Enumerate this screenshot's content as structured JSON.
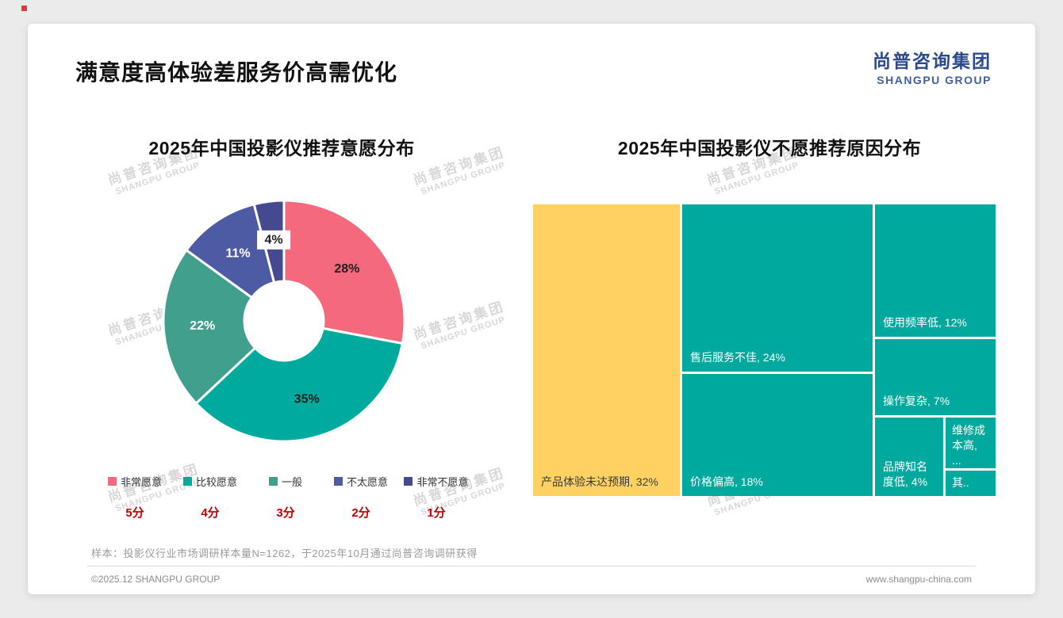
{
  "page": {
    "title": "满意度高体验差服务价高需优化",
    "logo": {
      "cn": "尚普咨询集团",
      "en": "SHANGPU GROUP"
    },
    "watermark": {
      "cn": "尚普咨询集团",
      "en": "SHANGPU GROUP"
    },
    "footer": {
      "note": "样本：投影仪行业市场调研样本量N=1262，于2025年10月通过尚普咨询调研获得",
      "copyright": "©2025.12 SHANGPU GROUP",
      "website": "www.shangpu-china.com"
    }
  },
  "chart_data": [
    {
      "type": "pie",
      "donut": true,
      "title": "2025年中国投影仪推荐意愿分布",
      "categories": [
        "非常愿意",
        "比较愿意",
        "一般",
        "不太愿意",
        "非常不愿意"
      ],
      "values": [
        28,
        35,
        22,
        11,
        4
      ],
      "unit": "%",
      "colors": [
        "#f4697c",
        "#00ab9e",
        "#41a08d",
        "#4d5ba5",
        "#45498f"
      ],
      "label_colors": [
        "#1f1f1f",
        "#1f1f1f",
        "#ffffff",
        "#ffffff",
        "#1f1f1f"
      ],
      "scores": [
        "5分",
        "4分",
        "3分",
        "2分",
        "1分"
      ],
      "legend_position": "bottom"
    },
    {
      "type": "treemap",
      "title": "2025年中国投影仪不愿推荐原因分布",
      "items": [
        {
          "label": "产品体验未达预期",
          "value": 32,
          "display": "产品体验未达预期, 32%",
          "color": "#fdd263",
          "text_color": "#3a3a3a"
        },
        {
          "label": "售后服务不佳",
          "value": 24,
          "display": "售后服务不佳, 24%",
          "color": "#00a99d",
          "text_color": "#ffffff"
        },
        {
          "label": "价格偏高",
          "value": 18,
          "display": "价格偏高, 18%",
          "color": "#00a99d",
          "text_color": "#ffffff"
        },
        {
          "label": "使用频率低",
          "value": 12,
          "display": "使用频率低, 12%",
          "color": "#00a99d",
          "text_color": "#ffffff"
        },
        {
          "label": "操作复杂",
          "value": 7,
          "display": "操作复杂, 7%",
          "color": "#00a99d",
          "text_color": "#ffffff"
        },
        {
          "label": "品牌知名度低",
          "value": 4,
          "display": "品牌知名度低, 4%",
          "color": "#00a99d",
          "text_color": "#ffffff"
        },
        {
          "label": "维修成本高",
          "display": "维修成本高, ...",
          "color": "#00a99d",
          "text_color": "#ffffff"
        },
        {
          "label": "其他",
          "display": "其..",
          "color": "#00a99d",
          "text_color": "#ffffff"
        }
      ]
    }
  ]
}
